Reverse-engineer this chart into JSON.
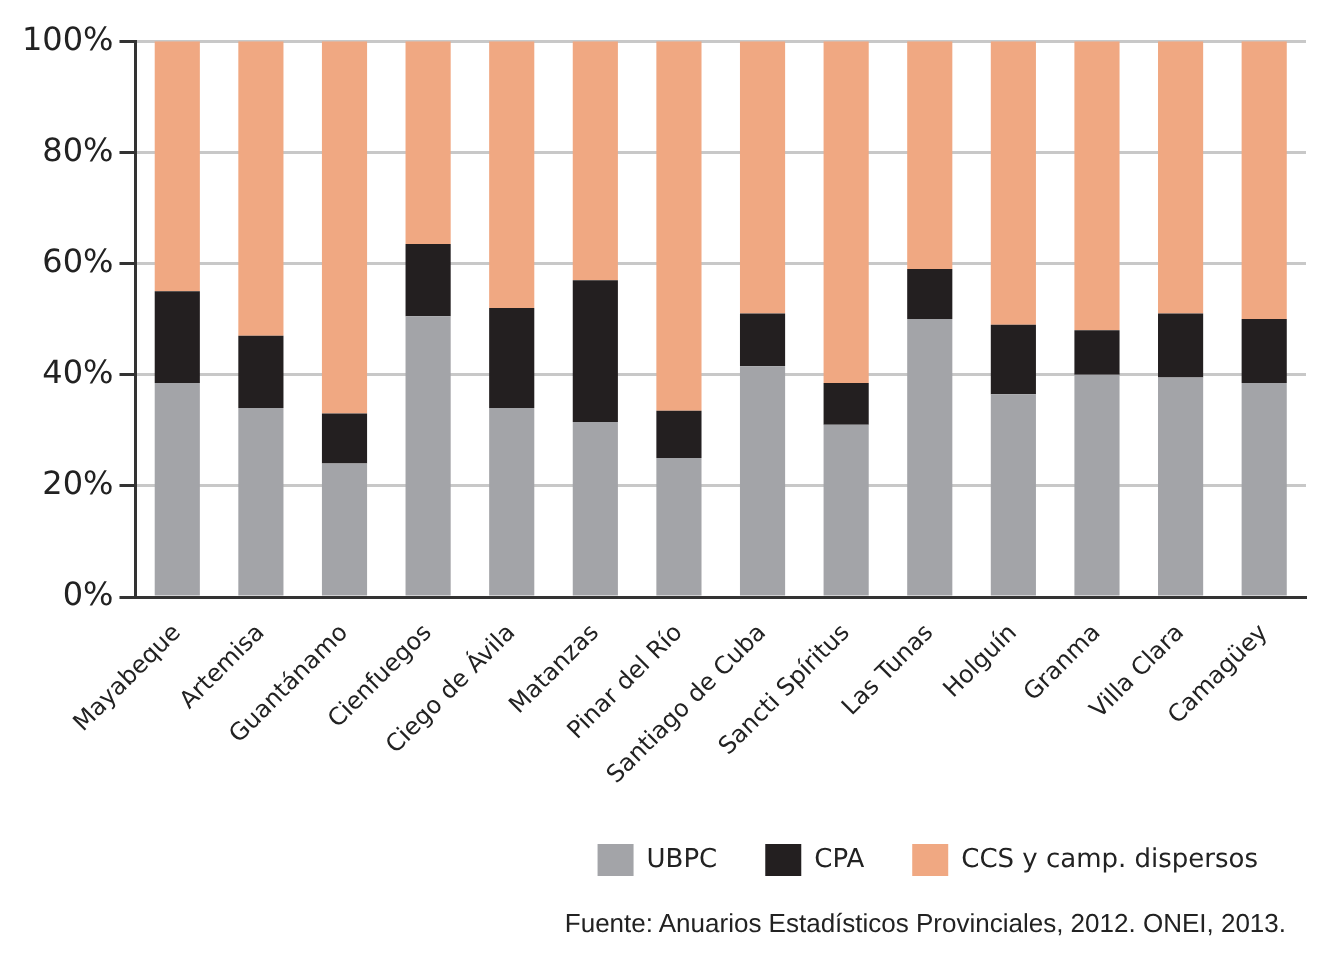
{
  "chart_data": {
    "type": "bar",
    "stacked": true,
    "categories": [
      "Mayabeque",
      "Artemisa",
      "Guantánamo",
      "Cienfuegos",
      "Ciego de Ávila",
      "Matanzas",
      "Pinar del Río",
      "Santiago de Cuba",
      "Sancti Spíritus",
      "Las Tunas",
      "Holguín",
      "Granma",
      "Villa Clara",
      "Camagüey"
    ],
    "series": [
      {
        "name": "UBPC",
        "color": "#a3a4a8",
        "values": [
          38.5,
          34,
          24,
          50.5,
          34,
          31.5,
          25,
          41.5,
          31,
          50,
          36.5,
          40,
          39.5,
          38.5
        ]
      },
      {
        "name": "CPA",
        "color": "#231f20",
        "values": [
          16.5,
          13,
          9,
          13,
          18,
          25.5,
          8.5,
          9.5,
          7.5,
          9,
          12.5,
          8,
          11.5,
          11.5
        ]
      },
      {
        "name": "CCS y camp. dispersos",
        "color": "#f0a882",
        "values": [
          45,
          53,
          67,
          36.5,
          48,
          43,
          66.5,
          49,
          61.5,
          41,
          51,
          52,
          49,
          50
        ]
      }
    ],
    "ylim": [
      0,
      100
    ],
    "yticks": [
      {
        "value": 0,
        "label": "0%"
      },
      {
        "value": 20,
        "label": "20%"
      },
      {
        "value": 40,
        "label": "40%"
      },
      {
        "value": 60,
        "label": "60%"
      },
      {
        "value": 80,
        "label": "80%"
      },
      {
        "value": 100,
        "label": "100%"
      }
    ],
    "grid": "y",
    "legend": "bottom right",
    "annotations": [
      "Fuente: Anuarios Estadísticos Provinciales, 2012. ONEI, 2013."
    ]
  }
}
